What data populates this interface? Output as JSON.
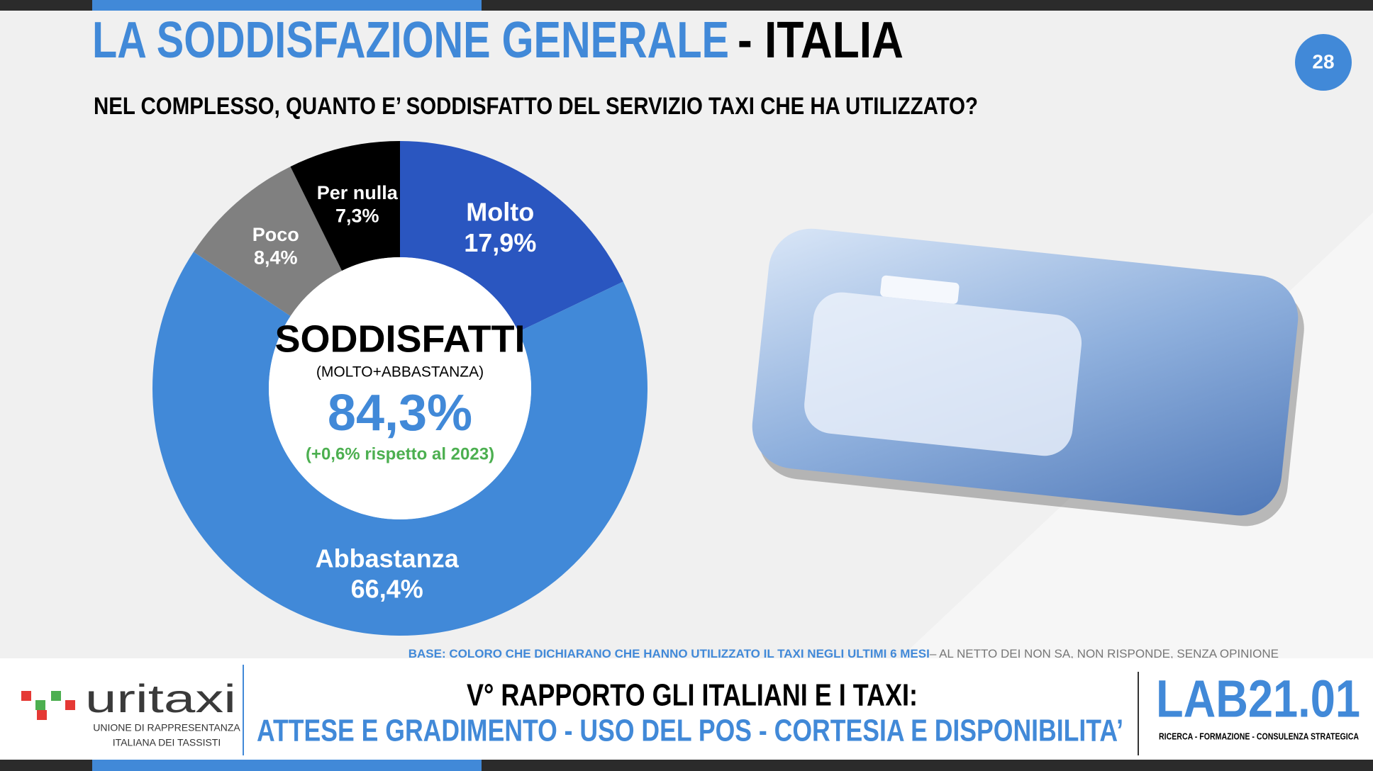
{
  "header": {
    "title": "LA SODDISFAZIONE GENERALE",
    "title_suffix": "- ITALIA",
    "question": "NEL COMPLESSO, QUANTO E’ SODDISFATTO DEL SERVIZIO TAXI CHE HA UTILIZZATO?",
    "page_number": "28"
  },
  "chart_data": {
    "type": "pie",
    "donut": true,
    "categories": [
      "Molto",
      "Abbastanza",
      "Poco",
      "Per nulla"
    ],
    "values": [
      17.9,
      66.4,
      8.4,
      7.3
    ],
    "value_labels": [
      "17,9%",
      "66,4%",
      "8,4%",
      "7,3%"
    ],
    "colors": [
      "#2a56c0",
      "#4189d8",
      "#808080",
      "#000000"
    ],
    "center": {
      "title": "SODDISFATTI",
      "subtitle": "(MOLTO+ABBASTANZA)",
      "value": "84,3%",
      "change": "(+0,6% rispetto al 2023)"
    }
  },
  "note": {
    "base": "BASE: COLORO CHE DICHIARANO CHE HANNO UTILIZZATO IL TAXI NEGLI ULTIMI 6 MESI",
    "detail": "– AL NETTO DEI NON SA, NON RISPONDE, SENZA OPINIONE"
  },
  "footer": {
    "logo": "uritaxi",
    "logo_line1": "UNIONE DI RAPPRESENTANZA",
    "logo_line2": "ITALIANA DEI TASSISTI",
    "report_line1": "V° RAPPORTO GLI ITALIANI E I TAXI:",
    "report_line2": "ATTESE E GRADIMENTO - USO DEL POS - CORTESIA E DISPONIBILITA’",
    "lab": "LAB21.01",
    "lab_tagline": "RICERCA - FORMAZIONE - CONSULENZA STRATEGICA"
  }
}
